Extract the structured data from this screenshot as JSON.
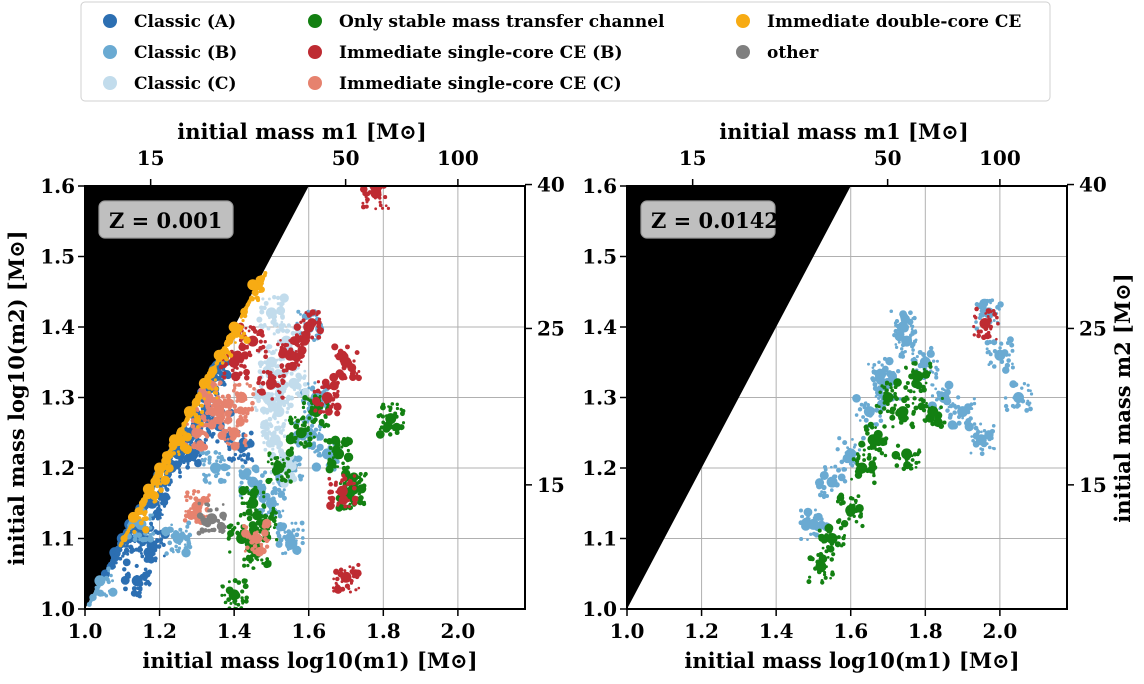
{
  "legend": [
    {
      "label": "Classic (A)",
      "color": "#2c6fb2"
    },
    {
      "label": "Classic (B)",
      "color": "#6aaad2"
    },
    {
      "label": "Classic (C)",
      "color": "#c2dcec"
    },
    {
      "label": "Only stable mass transfer channel",
      "color": "#138012"
    },
    {
      "label": "Immediate single-core CE (B)",
      "color": "#be2b32"
    },
    {
      "label": "Immediate single-core CE (C)",
      "color": "#e6826e"
    },
    {
      "label": "Immediate double-core CE",
      "color": "#f7ab13"
    },
    {
      "label": "other",
      "color": "#7f7f7f"
    }
  ],
  "chart_data": [
    {
      "type": "scatter",
      "annotation": "Z = 0.001",
      "xlabel": "initial mass log10(m1) [M⊙]",
      "ylabel": "initial mass log10(m2) [M⊙]",
      "top_xlabel": "initial mass m1 [M⊙]",
      "right_ylabel": "",
      "xlim": [
        1.0,
        2.18
      ],
      "ylim": [
        1.0,
        1.6
      ],
      "x_ticks": [
        "1.0",
        "1.2",
        "1.4",
        "1.6",
        "1.8",
        "2.0"
      ],
      "y_ticks": [
        "1.0",
        "1.1",
        "1.2",
        "1.3",
        "1.4",
        "1.5",
        "1.6"
      ],
      "top_ticks": [
        "15",
        "50",
        "100"
      ],
      "right_ticks": [
        "15",
        "25",
        "40"
      ],
      "grid": true,
      "series": [
        {
          "name": "Classic (A)",
          "points": [
            [
              1.08,
              1.08
            ],
            [
              1.1,
              1.1
            ],
            [
              1.12,
              1.12
            ],
            [
              1.15,
              1.1
            ],
            [
              1.18,
              1.15
            ],
            [
              1.2,
              1.18
            ],
            [
              1.22,
              1.2
            ],
            [
              1.25,
              1.22
            ],
            [
              1.27,
              1.25
            ],
            [
              1.3,
              1.27
            ],
            [
              1.32,
              1.3
            ],
            [
              1.34,
              1.33
            ],
            [
              1.35,
              1.34
            ],
            [
              1.14,
              1.04
            ],
            [
              1.18,
              1.09
            ],
            [
              1.29,
              1.22
            ],
            [
              1.36,
              1.26
            ],
            [
              1.42,
              1.23
            ]
          ]
        },
        {
          "name": "Classic (B)",
          "points": [
            [
              1.04,
              1.04
            ],
            [
              1.15,
              1.12
            ],
            [
              1.25,
              1.1
            ],
            [
              1.35,
              1.2
            ],
            [
              1.45,
              1.18
            ],
            [
              1.5,
              1.15
            ],
            [
              1.55,
              1.2
            ],
            [
              1.6,
              1.25
            ],
            [
              1.62,
              1.3
            ],
            [
              1.6,
              1.4
            ],
            [
              1.55,
              1.1
            ],
            [
              1.65,
              1.22
            ]
          ]
        },
        {
          "name": "Classic (C)",
          "points": [
            [
              1.49,
              1.3
            ],
            [
              1.5,
              1.35
            ],
            [
              1.52,
              1.28
            ],
            [
              1.54,
              1.38
            ],
            [
              1.51,
              1.24
            ],
            [
              1.56,
              1.32
            ],
            [
              1.5,
              1.42
            ],
            [
              1.53,
              1.2
            ]
          ]
        },
        {
          "name": "Only stable mass transfer channel",
          "points": [
            [
              1.4,
              1.02
            ],
            [
              1.42,
              1.1
            ],
            [
              1.45,
              1.15
            ],
            [
              1.48,
              1.12
            ],
            [
              1.52,
              1.2
            ],
            [
              1.58,
              1.25
            ],
            [
              1.62,
              1.28
            ],
            [
              1.68,
              1.22
            ],
            [
              1.72,
              1.17
            ],
            [
              1.71,
              1.165
            ],
            [
              1.82,
              1.27
            ],
            [
              1.46,
              1.08
            ]
          ]
        },
        {
          "name": "Immediate single-core CE (B)",
          "points": [
            [
              1.4,
              1.35
            ],
            [
              1.45,
              1.38
            ],
            [
              1.5,
              1.32
            ],
            [
              1.55,
              1.36
            ],
            [
              1.6,
              1.4
            ],
            [
              1.65,
              1.3
            ],
            [
              1.7,
              1.35
            ],
            [
              1.69,
              1.167
            ],
            [
              1.7,
              1.045
            ],
            [
              1.78,
              1.59
            ]
          ]
        },
        {
          "name": "Immediate single-core CE (C)",
          "points": [
            [
              1.3,
              1.25
            ],
            [
              1.33,
              1.3
            ],
            [
              1.36,
              1.28
            ],
            [
              1.4,
              1.25
            ],
            [
              1.42,
              1.3
            ],
            [
              1.3,
              1.145
            ],
            [
              1.46,
              1.1
            ]
          ]
        },
        {
          "name": "Immediate double-core CE",
          "points": [
            [
              1.13,
              1.13
            ],
            [
              1.17,
              1.17
            ],
            [
              1.2,
              1.2
            ],
            [
              1.24,
              1.24
            ],
            [
              1.28,
              1.28
            ],
            [
              1.32,
              1.32
            ],
            [
              1.36,
              1.36
            ],
            [
              1.4,
              1.4
            ],
            [
              1.45,
              1.46
            ]
          ]
        },
        {
          "name": "other",
          "points": [
            [
              1.34,
              1.128
            ]
          ]
        }
      ]
    },
    {
      "type": "scatter",
      "annotation": "Z = 0.0142",
      "xlabel": "initial mass log10(m1) [M⊙]",
      "ylabel": "",
      "top_xlabel": "initial mass m1 [M⊙]",
      "right_ylabel": "initial mass m2 [M⊙]",
      "xlim": [
        1.0,
        2.18
      ],
      "ylim": [
        1.0,
        1.6
      ],
      "x_ticks": [
        "1.0",
        "1.2",
        "1.4",
        "1.6",
        "1.8",
        "2.0"
      ],
      "y_ticks": [
        "1.0",
        "1.1",
        "1.2",
        "1.3",
        "1.4",
        "1.5",
        "1.6"
      ],
      "top_ticks": [
        "15",
        "50",
        "100"
      ],
      "right_ticks": [
        "15",
        "25",
        "40"
      ],
      "grid": true,
      "series": [
        {
          "name": "Classic (B)",
          "points": [
            [
              1.5,
              1.12
            ],
            [
              1.55,
              1.18
            ],
            [
              1.6,
              1.22
            ],
            [
              1.65,
              1.28
            ],
            [
              1.7,
              1.32
            ],
            [
              1.75,
              1.38
            ],
            [
              1.8,
              1.35
            ],
            [
              1.85,
              1.3
            ],
            [
              1.9,
              1.28
            ],
            [
              1.95,
              1.24
            ],
            [
              2.0,
              1.36
            ],
            [
              2.05,
              1.3
            ],
            [
              1.97,
              1.42
            ],
            [
              1.68,
              1.333
            ],
            [
              1.74,
              1.4
            ]
          ]
        },
        {
          "name": "Only stable mass transfer channel",
          "points": [
            [
              1.52,
              1.06
            ],
            [
              1.55,
              1.1
            ],
            [
              1.6,
              1.14
            ],
            [
              1.63,
              1.2
            ],
            [
              1.66,
              1.24
            ],
            [
              1.7,
              1.3
            ],
            [
              1.74,
              1.28
            ],
            [
              1.78,
              1.33
            ],
            [
              1.82,
              1.28
            ],
            [
              1.75,
              1.22
            ]
          ]
        },
        {
          "name": "Immediate single-core CE (B)",
          "points": [
            [
              1.96,
              1.405
            ]
          ]
        }
      ]
    }
  ]
}
